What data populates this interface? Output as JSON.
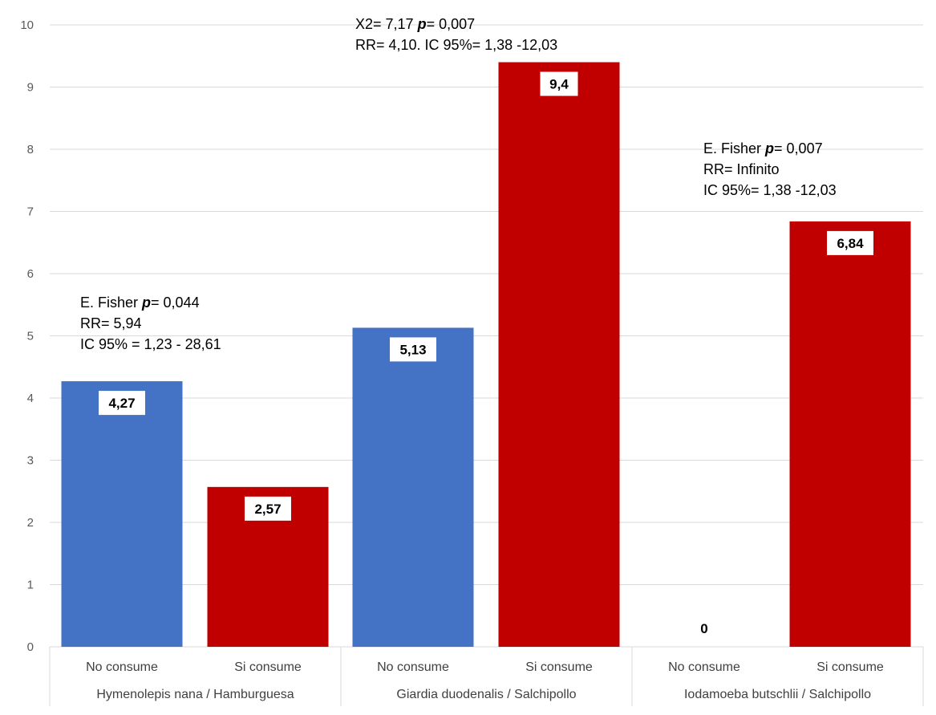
{
  "chart_data": {
    "type": "bar",
    "groups": [
      {
        "label": "Hymenolepis nana / Hamburguesa",
        "bars": [
          {
            "category": "No consume",
            "value": 4.27,
            "data_label": "4,27",
            "color": "#4472C4"
          },
          {
            "category": "Si consume",
            "value": 2.57,
            "data_label": "2,57",
            "color": "#C00000"
          }
        ],
        "annotation": [
          {
            "pre": "E. Fisher   ",
            "italic": "p",
            "post": "= 0,044"
          },
          {
            "pre": "RR= 5,94",
            "italic": "",
            "post": ""
          },
          {
            "pre": "IC 95% = 1,23 - 28,61",
            "italic": "",
            "post": ""
          }
        ]
      },
      {
        "label": "Giardia duodenalis / Salchipollo",
        "bars": [
          {
            "category": "No consume",
            "value": 5.13,
            "data_label": "5,13",
            "color": "#4472C4"
          },
          {
            "category": "Si consume",
            "value": 9.4,
            "data_label": "9,4",
            "color": "#C00000"
          }
        ],
        "annotation": [
          {
            "pre": "X2= 7,17    ",
            "italic": "p",
            "post": "= 0,007"
          },
          {
            "pre": "RR= 4,10.   IC 95%= 1,38 -12,03",
            "italic": "",
            "post": ""
          }
        ]
      },
      {
        "label": "Iodamoeba butschlii / Salchipollo",
        "bars": [
          {
            "category": "No consume",
            "value": 0,
            "data_label": "0",
            "color": "#4472C4"
          },
          {
            "category": "Si consume",
            "value": 6.84,
            "data_label": "6,84",
            "color": "#C00000"
          }
        ],
        "annotation": [
          {
            "pre": "E. Fisher   ",
            "italic": "p",
            "post": "= 0,007"
          },
          {
            "pre": "RR= Infinito",
            "italic": "",
            "post": ""
          },
          {
            "pre": "IC 95%= 1,38 -12,03",
            "italic": "",
            "post": ""
          }
        ]
      }
    ],
    "ylim": [
      0,
      10
    ],
    "yticks": [
      "0",
      "1",
      "2",
      "3",
      "4",
      "5",
      "6",
      "7",
      "8",
      "9",
      "10"
    ],
    "grid": true,
    "legend": "none"
  }
}
